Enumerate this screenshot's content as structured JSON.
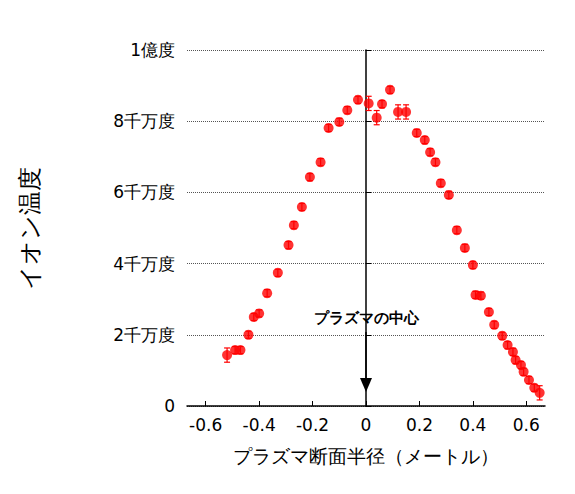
{
  "chart_data": {
    "type": "scatter",
    "x_label": "プラズマ断面半径（メートル）",
    "y_label": "イオン温度",
    "color": "#ff0000",
    "marker": "circle",
    "grid": true,
    "xlim": [
      -0.67,
      0.67
    ],
    "xticks": [
      -0.6,
      -0.4,
      -0.2,
      0,
      0.2,
      0.4,
      0.6
    ],
    "ylim": [
      0,
      100000000
    ],
    "yticks": [
      0,
      {
        "value": 20000000,
        "label": "2千万度"
      },
      {
        "value": 40000000,
        "label": "4千万度"
      },
      {
        "value": 60000000,
        "label": "6千万度"
      },
      {
        "value": 80000000,
        "label": "8千万度"
      },
      {
        "value": 100000000,
        "label": "1億度"
      }
    ],
    "annotations": [
      {
        "text": "プラズマの中心",
        "x": 0
      }
    ],
    "x": [
      -0.52,
      -0.49,
      -0.47,
      -0.44,
      -0.42,
      -0.4,
      -0.37,
      -0.33,
      -0.29,
      -0.27,
      -0.24,
      -0.21,
      -0.17,
      -0.14,
      -0.1,
      -0.07,
      -0.03,
      0.01,
      0.04,
      0.06,
      0.09,
      0.12,
      0.15,
      0.19,
      0.22,
      0.24,
      0.26,
      0.28,
      0.31,
      0.34,
      0.37,
      0.4,
      0.41,
      0.43,
      0.46,
      0.48,
      0.51,
      0.53,
      0.55,
      0.56,
      0.58,
      0.59,
      0.61,
      0.63,
      0.65
    ],
    "values": [
      14300000,
      15700000,
      15700000,
      20000000,
      25000000,
      26000000,
      31700000,
      37400000,
      45200000,
      50800000,
      55900000,
      64300000,
      68500000,
      78100000,
      79800000,
      83100000,
      86000000,
      85000000,
      81000000,
      84800000,
      88800000,
      82600000,
      82600000,
      76700000,
      74700000,
      71300000,
      68500000,
      62600000,
      59300000,
      49400000,
      44400000,
      39600000,
      31200000,
      31000000,
      26400000,
      22800000,
      19700000,
      17100000,
      15200000,
      12900000,
      11500000,
      9600000,
      7300000,
      5100000,
      3700000
    ],
    "errors": [
      2000000,
      1000000,
      1000000,
      1000000,
      1000000,
      1000000,
      1000000,
      1000000,
      1000000,
      1000000,
      1000000,
      1000000,
      1000000,
      1000000,
      1000000,
      1000000,
      1000000,
      2000000,
      2000000,
      1000000,
      1000000,
      2000000,
      2000000,
      1000000,
      1000000,
      1000000,
      1000000,
      1000000,
      1000000,
      1000000,
      1000000,
      1000000,
      1000000,
      1000000,
      1000000,
      1000000,
      1000000,
      1000000,
      1000000,
      1000000,
      1000000,
      1000000,
      1000000,
      1000000,
      2000000
    ]
  }
}
